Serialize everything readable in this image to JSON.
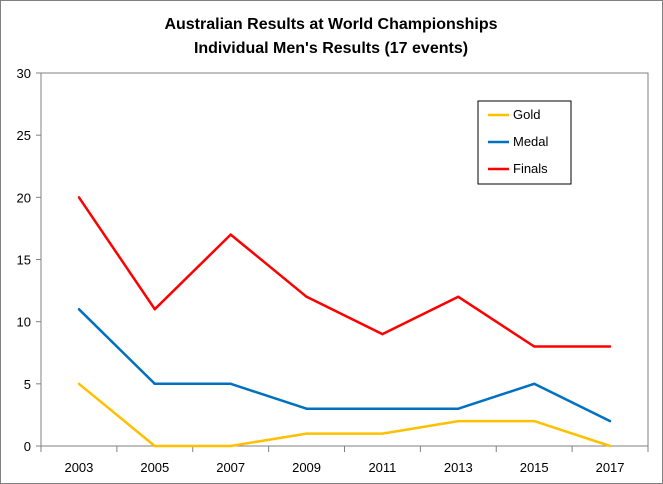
{
  "chart_data": {
    "type": "line",
    "title": "Australian Results at World Championships",
    "subtitle": "Individual Men's Results (17 events)",
    "xlabel": "",
    "ylabel": "",
    "categories": [
      "2003",
      "2005",
      "2007",
      "2009",
      "2011",
      "2013",
      "2015",
      "2017"
    ],
    "ylim": [
      0,
      30
    ],
    "yticks": [
      0,
      5,
      10,
      15,
      20,
      25,
      30
    ],
    "grid": false,
    "legend_position": "top-right",
    "series": [
      {
        "name": "Gold",
        "color": "#FFC000",
        "values": [
          5,
          0,
          0,
          1,
          1,
          2,
          2,
          0
        ]
      },
      {
        "name": "Medal",
        "color": "#0070C0",
        "values": [
          11,
          5,
          5,
          3,
          3,
          3,
          5,
          2
        ]
      },
      {
        "name": "Finals",
        "color": "#FF0000",
        "values": [
          20,
          11,
          17,
          12,
          9,
          12,
          8,
          8
        ]
      }
    ]
  }
}
